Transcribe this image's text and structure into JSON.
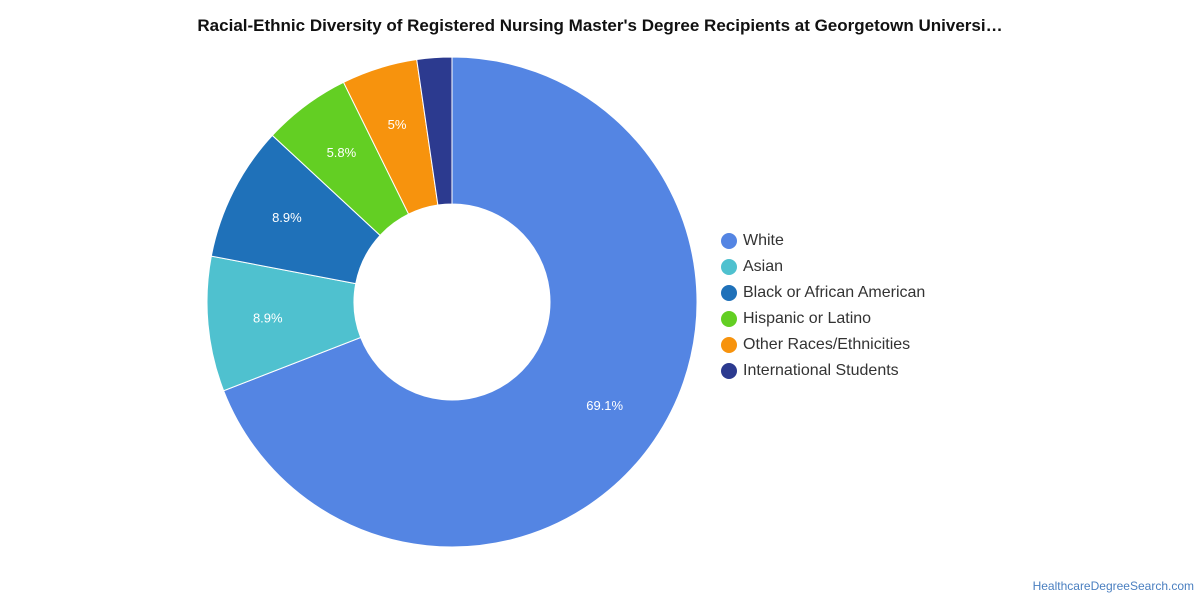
{
  "chart_data": {
    "type": "pie",
    "title": "Racial-Ethnic Diversity of Registered Nursing Master's Degree Recipients at Georgetown Universi…",
    "categories": [
      "White",
      "Asian",
      "Black or African American",
      "Hispanic or Latino",
      "Other Races/Ethnicities",
      "International Students"
    ],
    "values": [
      69.1,
      8.9,
      8.9,
      5.8,
      5.0,
      2.3
    ],
    "data_labels": [
      "69.1%",
      "8.9%",
      "8.9%",
      "5.8%",
      "5%",
      ""
    ],
    "colors": [
      "#5485e3",
      "#4fc1cf",
      "#1f71b9",
      "#63cf23",
      "#f7930d",
      "#2c3a8f"
    ],
    "legend_position": "right",
    "donut": true
  },
  "source_credit": "HealthcareDegreeSearch.com"
}
